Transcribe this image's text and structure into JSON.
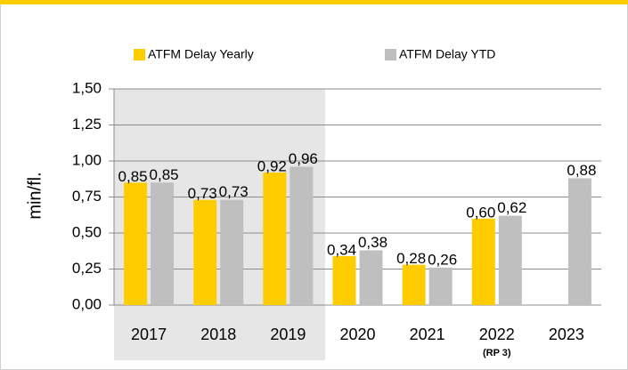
{
  "chart_data": {
    "type": "bar",
    "categories": [
      "2017",
      "2018",
      "2019",
      "2020",
      "2021",
      "2022",
      "2023"
    ],
    "series": [
      {
        "name": "ATFM Delay Yearly",
        "color": "#ffcc00",
        "label_color": "#d9a400",
        "values": [
          0.85,
          0.73,
          0.92,
          0.34,
          0.28,
          0.6,
          null
        ],
        "value_labels": [
          "0,85",
          "0,73",
          "0,92",
          "0,34",
          "0,28",
          "0,60",
          null
        ]
      },
      {
        "name": "ATFM Delay YTD",
        "color": "#bfbfbf",
        "label_color": "#000000",
        "values": [
          0.85,
          0.73,
          0.96,
          0.38,
          0.26,
          0.62,
          0.88
        ],
        "value_labels": [
          "0,85",
          "0,73",
          "0,96",
          "0,38",
          "0,26",
          "0,62",
          "0,88"
        ]
      }
    ],
    "y_label": "min/fl.",
    "annotations": [
      {
        "category": "2022",
        "text": "(RP 3)"
      }
    ],
    "ylim": [
      0,
      1.5
    ],
    "yticks": [
      {
        "value": 0,
        "label": "0,00"
      },
      {
        "value": 0.25,
        "label": "0,25"
      },
      {
        "value": 0.5,
        "label": "0,50"
      },
      {
        "value": 0.75,
        "label": "0,75"
      },
      {
        "value": 1.0,
        "label": "1,00"
      },
      {
        "value": 1.25,
        "label": "1,25"
      },
      {
        "value": 1.5,
        "label": "1,50"
      }
    ],
    "grid": true,
    "legend": "top"
  }
}
